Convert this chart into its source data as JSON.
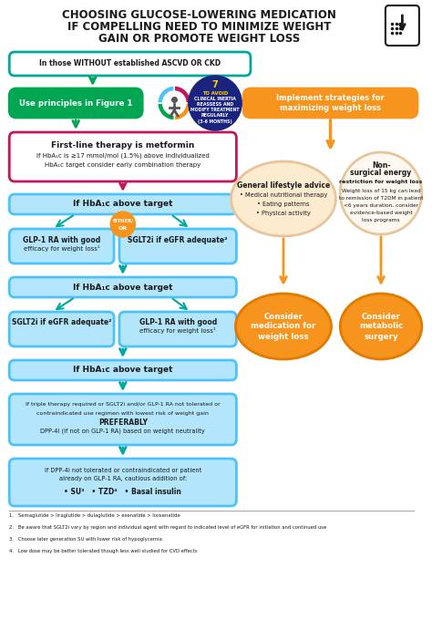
{
  "title_line1": "CHOOSING GLUCOSE-LOWERING MEDICATION",
  "title_line2": "IF COMPELLING NEED TO MINIMIZE WEIGHT",
  "title_line3": "GAIN OR PROMOTE WEIGHT LOSS",
  "bg_color": "#ffffff",
  "title_color": "#1a1a1a",
  "colors": {
    "teal_border": "#00a99d",
    "green_box": "#00a651",
    "orange_box": "#f7941d",
    "pink_border": "#c2185b",
    "light_blue_box": "#b3e5fc",
    "light_blue_border": "#4fc3f7",
    "navy_circle": "#1a237e",
    "arrow_green": "#00a651",
    "arrow_pink": "#c2185b",
    "arrow_orange": "#f7941d",
    "arrow_teal": "#00a99d"
  },
  "hba1c": "HbA₁c",
  "geq": "≥",
  "bullet": "•",
  "sup1": "¹",
  "sup2": "²",
  "sup3": "³",
  "sup4": "⁴",
  "footnotes": [
    "1.   Semaglutide > liraglutide > dulaglutide > exenatide > lixisenatide",
    "2.   Be aware that SGLT2i vary by region and individual agent with regard to indicated level of eGFR for initiation and continued use",
    "3.   Choose later generation SU with lower risk of hypoglycemia",
    "4.   Low dose may be better tolerated though less well studied for CVD effects"
  ]
}
